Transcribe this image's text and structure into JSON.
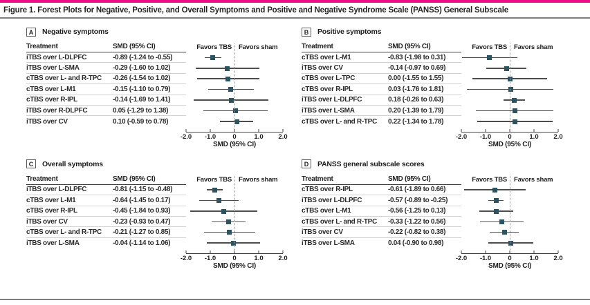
{
  "figure": {
    "title_prefix": "Figure 1.",
    "title_rest": "Forest Plots for Negative, Positive, and Overall Symptoms and Positive and Negative Syndrome Scale (PANSS) General Subscale"
  },
  "colors": {
    "accent_bar": "#ed0e83",
    "marker": "#2d5361",
    "ci_line": "#4c4c4c"
  },
  "table": {
    "col1": "Treatment",
    "col2": "SMD (95% CI)"
  },
  "axis": {
    "min": -2.0,
    "max": 2.0,
    "ticks": [
      "-2.0",
      "-1.0",
      "0",
      "1.0",
      "2.0"
    ],
    "xlabel": "SMD (95% CI)",
    "left_label": "Favors TBS",
    "right_label": "Favors sham"
  },
  "chart_data": [
    {
      "type": "forest",
      "panel": "A",
      "title": "Negative symptoms",
      "xlim": [
        -2.0,
        2.0
      ],
      "rows": [
        {
          "treatment": "iTBS over L-DLPFC",
          "smd_text": "-0.89 (-1.24 to -0.55)",
          "smd": -0.89,
          "lo": -1.24,
          "hi": -0.55
        },
        {
          "treatment": "iTBS over L-SMA",
          "smd_text": "-0.29 (-1.60 to 1.02)",
          "smd": -0.29,
          "lo": -1.6,
          "hi": 1.02
        },
        {
          "treatment": "cTBS over L- and R-TPC",
          "smd_text": "-0.26 (-1.54 to 1.02)",
          "smd": -0.26,
          "lo": -1.54,
          "hi": 1.02
        },
        {
          "treatment": "cTBS over L-M1",
          "smd_text": "-0.15 (-1.10 to 0.79)",
          "smd": -0.15,
          "lo": -1.1,
          "hi": 0.79
        },
        {
          "treatment": "cTBS over R-IPL",
          "smd_text": "-0.14 (-1.69 to 1.41)",
          "smd": -0.14,
          "lo": -1.69,
          "hi": 1.41
        },
        {
          "treatment": "iTBS over R-DLPFC",
          "smd_text": "0.05 (-1.29 to 1.38)",
          "smd": 0.05,
          "lo": -1.29,
          "hi": 1.38
        },
        {
          "treatment": "iTBS over CV",
          "smd_text": "0.10 (-0.59 to 0.78)",
          "smd": 0.1,
          "lo": -0.59,
          "hi": 0.78
        }
      ]
    },
    {
      "type": "forest",
      "panel": "B",
      "title": "Positive symptoms",
      "xlim": [
        -2.0,
        2.0
      ],
      "rows": [
        {
          "treatment": "cTBS over L-M1",
          "smd_text": "-0.83 (-1.98 to 0.31)",
          "smd": -0.83,
          "lo": -1.98,
          "hi": 0.31
        },
        {
          "treatment": "iTBS over CV",
          "smd_text": "-0.14 (-0.97 to 0.69)",
          "smd": -0.14,
          "lo": -0.97,
          "hi": 0.69
        },
        {
          "treatment": "cTBS over L-TPC",
          "smd_text": "0.00 (-1.55 to 1.55)",
          "smd": 0.0,
          "lo": -1.55,
          "hi": 1.55
        },
        {
          "treatment": "cTBS over R-IPL",
          "smd_text": "0.03 (-1.76 to 1.81)",
          "smd": 0.03,
          "lo": -1.76,
          "hi": 1.81
        },
        {
          "treatment": "iTBS over L-DLPFC",
          "smd_text": "0.18 (-0.26 to 0.63)",
          "smd": 0.18,
          "lo": -0.26,
          "hi": 0.63
        },
        {
          "treatment": "iTBS over L-SMA",
          "smd_text": "0.20 (-1.39 to 1.79)",
          "smd": 0.2,
          "lo": -1.39,
          "hi": 1.79
        },
        {
          "treatment": "cTBS over L- and R-TPC",
          "smd_text": "0.22 (-1.34 to 1.78)",
          "smd": 0.22,
          "lo": -1.34,
          "hi": 1.78
        }
      ]
    },
    {
      "type": "forest",
      "panel": "C",
      "title": "Overall symptoms",
      "xlim": [
        -2.0,
        2.0
      ],
      "rows": [
        {
          "treatment": "iTBS over L-DLPFC",
          "smd_text": "-0.81 (-1.15 to -0.48)",
          "smd": -0.81,
          "lo": -1.15,
          "hi": -0.48
        },
        {
          "treatment": "cTBS over L-M1",
          "smd_text": "-0.64 (-1.45 to 0.17)",
          "smd": -0.64,
          "lo": -1.45,
          "hi": 0.17
        },
        {
          "treatment": "cTBS over R-IPL",
          "smd_text": "-0.45 (-1.84 to 0.93)",
          "smd": -0.45,
          "lo": -1.84,
          "hi": 0.93
        },
        {
          "treatment": "iTBS over CV",
          "smd_text": "-0.23 (-0.93 to 0.47)",
          "smd": -0.23,
          "lo": -0.93,
          "hi": 0.47
        },
        {
          "treatment": "cTBS over L- and R-TPC",
          "smd_text": "-0.21 (-1.27 to 0.85)",
          "smd": -0.21,
          "lo": -1.27,
          "hi": 0.85
        },
        {
          "treatment": "iTBS over L-SMA",
          "smd_text": "-0.04 (-1.14 to 1.06)",
          "smd": -0.04,
          "lo": -1.14,
          "hi": 1.06
        }
      ]
    },
    {
      "type": "forest",
      "panel": "D",
      "title": "PANSS general subscale scores",
      "xlim": [
        -2.0,
        2.0
      ],
      "rows": [
        {
          "treatment": "cTBS over R-IPL",
          "smd_text": "-0.61 (-1.89 to 0.66)",
          "smd": -0.61,
          "lo": -1.89,
          "hi": 0.66
        },
        {
          "treatment": "iTBS over L-DLPFC",
          "smd_text": "-0.57 (-0.89 to -0.25)",
          "smd": -0.57,
          "lo": -0.89,
          "hi": -0.25
        },
        {
          "treatment": "cTBS over L-M1",
          "smd_text": "-0.56 (-1.25 to 0.13)",
          "smd": -0.56,
          "lo": -1.25,
          "hi": 0.13
        },
        {
          "treatment": "cTBS over L- and R-TPC",
          "smd_text": "-0.33 (-1.22 to 0.56)",
          "smd": -0.33,
          "lo": -1.22,
          "hi": 0.56
        },
        {
          "treatment": "iTBS over CV",
          "smd_text": "-0.22 (-0.82 to 0.38)",
          "smd": -0.22,
          "lo": -0.82,
          "hi": 0.38
        },
        {
          "treatment": "iTBS over L-SMA",
          "smd_text": "0.04 (-0.90 to 0.98)",
          "smd": 0.04,
          "lo": -0.9,
          "hi": 0.98
        }
      ]
    }
  ]
}
